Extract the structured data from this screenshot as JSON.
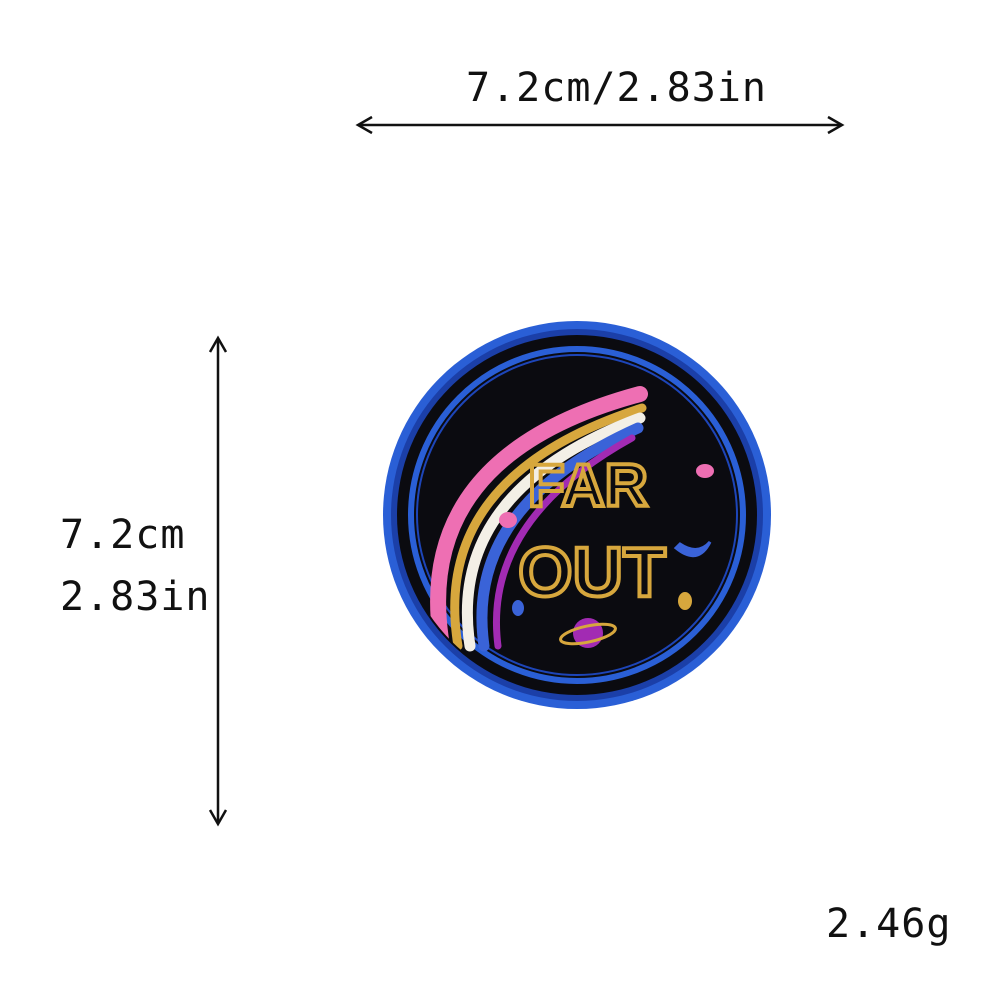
{
  "dimensions": {
    "width_label": "7.2cm/2.83in",
    "height_cm": "7.2cm",
    "height_in": "2.83in",
    "weight": "2.46g"
  },
  "patch": {
    "text_line1": "FAR",
    "text_line2": "OUT",
    "colors": {
      "border": "#2a5fd6",
      "background": "#0b0b10",
      "pink": "#ee6fb3",
      "gold": "#d7a73d",
      "white": "#f3efe6",
      "blue": "#3a63d8",
      "purple": "#a22bb3"
    }
  }
}
